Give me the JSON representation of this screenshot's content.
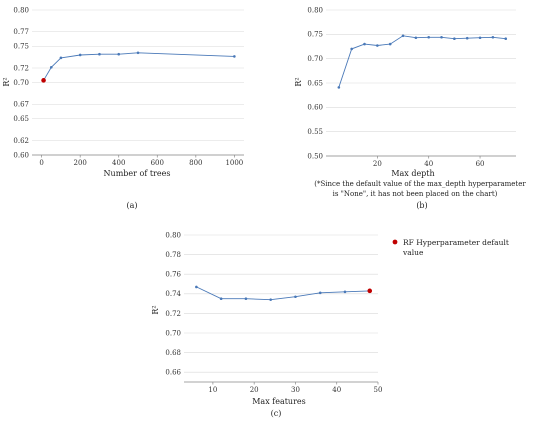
{
  "colors": {
    "line": "#4a79b8",
    "default": "#c00000",
    "grid": "#d9d9d9",
    "axis": "#888888"
  },
  "legend": {
    "label_line1": "RF Hyperparameter default",
    "label_line2": "value"
  },
  "chart_data": [
    {
      "type": "line",
      "caption": "(a)",
      "xlabel": "Number of trees",
      "ylabel": "R²",
      "xlim": [
        -50,
        1050
      ],
      "ylim": [
        0.6,
        0.8
      ],
      "xticks": [
        0,
        200,
        400,
        600,
        800,
        1000
      ],
      "yticks": [
        0.6,
        0.62,
        0.65,
        0.67,
        0.7,
        0.72,
        0.75,
        0.77,
        0.8
      ],
      "ytick_labels": [
        "0.60",
        "0.62",
        "0.65",
        "0.67",
        "0.70",
        "0.72",
        "0.75",
        "0.77",
        "0.80"
      ],
      "grid": "horizontal",
      "x": [
        10,
        50,
        100,
        200,
        300,
        400,
        500,
        1000
      ],
      "y": [
        0.703,
        0.721,
        0.734,
        0.738,
        0.739,
        0.739,
        0.741,
        0.736
      ],
      "default_point": {
        "x": 10,
        "y": 0.703
      }
    },
    {
      "type": "line",
      "caption": "(b)",
      "xlabel": "Max depth",
      "ylabel": "R²",
      "note_line1": "(*Since the default value of the max_depth hyperparameter",
      "note_line2": "is \"None\", it has not been placed on the chart)",
      "xlim": [
        0,
        74
      ],
      "ylim": [
        0.5,
        0.8
      ],
      "xticks": [
        20,
        40,
        60
      ],
      "yticks": [
        0.5,
        0.55,
        0.6,
        0.65,
        0.7,
        0.75,
        0.8
      ],
      "ytick_labels": [
        "0.50",
        "0.55",
        "0.60",
        "0.65",
        "0.70",
        "0.75",
        "0.80"
      ],
      "grid": "horizontal",
      "x": [
        5,
        10,
        15,
        20,
        25,
        30,
        35,
        40,
        45,
        50,
        55,
        60,
        65,
        70
      ],
      "y": [
        0.641,
        0.72,
        0.73,
        0.727,
        0.73,
        0.747,
        0.743,
        0.744,
        0.744,
        0.741,
        0.742,
        0.743,
        0.744,
        0.741
      ]
    },
    {
      "type": "line",
      "caption": "(c)",
      "xlabel": "Max features",
      "ylabel": "R²",
      "xlim": [
        3,
        50
      ],
      "ylim": [
        0.65,
        0.8
      ],
      "xticks": [
        10,
        20,
        30,
        40,
        50
      ],
      "yticks": [
        0.66,
        0.68,
        0.7,
        0.72,
        0.74,
        0.76,
        0.78,
        0.8
      ],
      "ytick_labels": [
        "0.66",
        "0.68",
        "0.70",
        "0.72",
        "0.74",
        "0.76",
        "0.78",
        "0.80"
      ],
      "grid": "horizontal",
      "x": [
        6,
        12,
        18,
        24,
        30,
        36,
        42,
        48
      ],
      "y": [
        0.747,
        0.735,
        0.735,
        0.734,
        0.737,
        0.741,
        0.742,
        0.743
      ],
      "default_point": {
        "x": 48,
        "y": 0.743
      }
    }
  ]
}
